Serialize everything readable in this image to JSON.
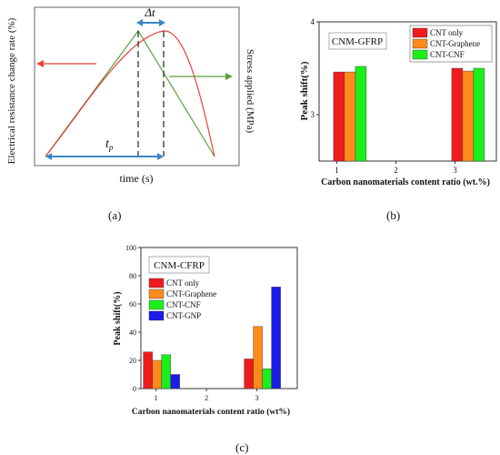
{
  "panel_a": {
    "ylabel_left": "Electrical resistance change rate (%)",
    "ylabel_right": "Stress applied (MPa)",
    "xlabel": "time (s)",
    "delta_label": "Δt",
    "tp_label": "t",
    "tp_sub": "p",
    "caption": "(a)"
  },
  "panel_b": {
    "caption": "(b)",
    "box_title": "CNM-GFRP"
  },
  "panel_c": {
    "caption": "(c)",
    "box_title": "CNM-CFRP"
  },
  "chart_data": [
    {
      "type": "line",
      "panel": "a",
      "title": "",
      "xlabel": "time (s)",
      "ylabel_left": "Electrical resistance change rate (%)",
      "ylabel_right": "Stress applied (MPa)",
      "series": [
        {
          "color": "#5aa03c",
          "shape": "triangle"
        },
        {
          "color": "#e8403c",
          "shape": "skewed-peak"
        }
      ],
      "annotations": [
        "Δt",
        "tp"
      ]
    },
    {
      "type": "bar",
      "panel": "b",
      "title": "",
      "xlabel": "Carbon nanomaterials content ratio (wt.%)",
      "ylabel": "Peak shift(%)",
      "categories": [
        "1",
        "3"
      ],
      "x_ticks": [
        "1",
        "2",
        "3"
      ],
      "ylim": [
        2.5,
        4
      ],
      "y_ticks": [
        "3",
        "4"
      ],
      "legend_position": "top-right",
      "series": [
        {
          "name": "CNT only",
          "color": "#ee1c1c",
          "values": [
            3.46,
            3.5
          ]
        },
        {
          "name": "CNT-Graphene",
          "color": "#ff8a1c",
          "values": [
            3.46,
            3.47
          ]
        },
        {
          "name": "CNT-CNF",
          "color": "#1cee1c",
          "values": [
            3.52,
            3.5
          ]
        }
      ]
    },
    {
      "type": "bar",
      "panel": "c",
      "title": "",
      "xlabel": "Carbon nanomaterials content ratio (wt%)",
      "ylabel": "Peak shift(%)",
      "categories": [
        "1",
        "3"
      ],
      "x_ticks": [
        "1",
        "2",
        "3"
      ],
      "ylim": [
        0,
        100
      ],
      "y_ticks": [
        "0",
        "20",
        "40",
        "60",
        "80",
        "100"
      ],
      "legend_position": "top-left",
      "series": [
        {
          "name": "CNT only",
          "color": "#ee1c1c",
          "values": [
            26,
            21
          ]
        },
        {
          "name": "CNT-Graphene",
          "color": "#ff8a1c",
          "values": [
            20,
            44
          ]
        },
        {
          "name": "CNT-CNF",
          "color": "#1cee1c",
          "values": [
            24,
            14
          ]
        },
        {
          "name": "CNT-GNP",
          "color": "#1c1ce8",
          "values": [
            10,
            72
          ]
        }
      ]
    }
  ]
}
